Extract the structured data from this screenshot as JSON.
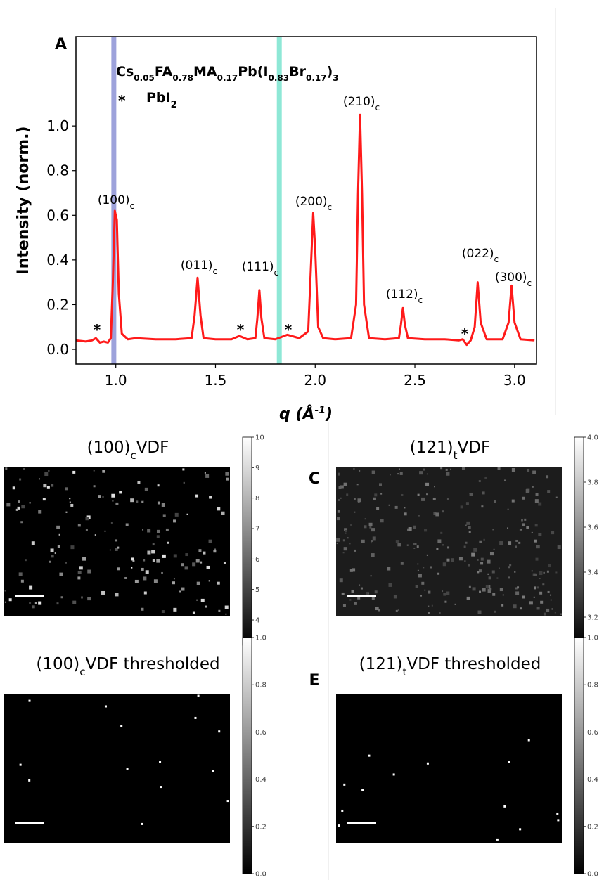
{
  "chart_data": [
    {
      "type": "line",
      "panel_label": "A",
      "ylabel": "Intensity (norm.)",
      "xlabel": [
        "q (Å",
        "-1",
        ")"
      ],
      "xlim": [
        0.8,
        3.11
      ],
      "ylim": [
        -0.066,
        1.4
      ],
      "xticks": [
        {
          "value": 1,
          "label": "1.0"
        },
        1.5,
        {
          "value": 2,
          "label": "2.0"
        },
        2.5,
        {
          "value": 3,
          "label": "3.0"
        }
      ],
      "yticks": [
        {
          "value": 0,
          "label": "0.0"
        },
        0.2,
        0.4,
        0.6,
        0.8,
        {
          "value": 1,
          "label": "1.0"
        }
      ],
      "legend": [
        [
          "Cs",
          "0.05",
          "FA",
          "0.78",
          "MA",
          "0.17",
          "Pb(I",
          "0.83",
          "Br",
          "0.17",
          ")",
          "3"
        ],
        [
          "*",
          "PbI",
          "2"
        ]
      ],
      "bands": [
        {
          "x": 0.99,
          "color": "#9da2db"
        },
        {
          "x": 1.82,
          "color": "#8ee8d6"
        }
      ],
      "series": [
        {
          "color": "#ff1a1a",
          "x": [
            0.8,
            0.85,
            0.88,
            0.9,
            0.92,
            0.94,
            0.96,
            0.975,
            0.985,
            0.995,
            1.005,
            1.015,
            1.03,
            1.06,
            1.1,
            1.2,
            1.3,
            1.38,
            1.395,
            1.41,
            1.425,
            1.44,
            1.5,
            1.58,
            1.62,
            1.66,
            1.7,
            1.71,
            1.72,
            1.73,
            1.745,
            1.8,
            1.86,
            1.92,
            1.965,
            1.98,
            1.99,
            2.0,
            2.015,
            2.04,
            2.1,
            2.18,
            2.205,
            2.215,
            2.225,
            2.235,
            2.245,
            2.27,
            2.35,
            2.42,
            2.43,
            2.44,
            2.45,
            2.465,
            2.55,
            2.65,
            2.72,
            2.74,
            2.76,
            2.78,
            2.8,
            2.815,
            2.83,
            2.86,
            2.94,
            2.97,
            2.985,
            3.0,
            3.03,
            3.1
          ],
          "values": [
            0.04,
            0.035,
            0.04,
            0.05,
            0.03,
            0.035,
            0.03,
            0.05,
            0.3,
            0.62,
            0.58,
            0.25,
            0.07,
            0.045,
            0.05,
            0.045,
            0.045,
            0.05,
            0.15,
            0.32,
            0.15,
            0.05,
            0.045,
            0.045,
            0.06,
            0.045,
            0.05,
            0.14,
            0.265,
            0.14,
            0.05,
            0.045,
            0.065,
            0.05,
            0.08,
            0.4,
            0.61,
            0.45,
            0.1,
            0.05,
            0.045,
            0.05,
            0.2,
            0.7,
            1.05,
            0.7,
            0.2,
            0.05,
            0.045,
            0.05,
            0.11,
            0.185,
            0.11,
            0.05,
            0.045,
            0.045,
            0.04,
            0.045,
            0.02,
            0.04,
            0.1,
            0.3,
            0.12,
            0.045,
            0.045,
            0.12,
            0.285,
            0.12,
            0.045,
            0.04
          ]
        }
      ],
      "peak_labels": [
        {
          "text": "(100)",
          "sub": "c"
        },
        {
          "text": "(011)",
          "sub": "c"
        },
        {
          "text": "(111)",
          "sub": "c"
        },
        {
          "text": "(200)",
          "sub": "c"
        },
        {
          "text": "(210)",
          "sub": "c"
        },
        {
          "text": "(112)",
          "sub": "c"
        },
        {
          "text": "(022)",
          "sub": "c"
        },
        {
          "text": "(300)",
          "sub": "c"
        }
      ],
      "star_labels": [
        "*",
        "*",
        "*",
        "*"
      ]
    },
    {
      "type": "image",
      "title": [
        "(100)",
        "c",
        "VDF"
      ],
      "colorbar_lim": [
        3.17,
        10
      ],
      "colorbar_ticks": [
        4,
        5,
        6,
        7,
        8,
        9,
        10
      ]
    },
    {
      "type": "image",
      "panel_label": "C",
      "title": [
        "(121)",
        "t",
        "VDF"
      ],
      "colorbar_lim": [
        3.075,
        4.0
      ],
      "colorbar_ticks": [
        3.2,
        3.4,
        3.6,
        3.8,
        {
          "value": 4,
          "label": "4.0"
        }
      ]
    },
    {
      "type": "image",
      "title": [
        "(100)",
        "c",
        "VDF thresholded"
      ],
      "colorbar_lim": [
        0,
        1
      ],
      "colorbar_ticks": [
        {
          "value": 0,
          "label": "0.0"
        },
        0.2,
        0.4,
        0.6,
        0.8,
        {
          "value": 1,
          "label": "1.0"
        }
      ]
    },
    {
      "type": "image",
      "panel_label": "E",
      "title": [
        "(121)",
        "t",
        "VDF thresholded"
      ],
      "colorbar_lim": [
        0,
        1
      ],
      "colorbar_ticks": [
        {
          "value": 0,
          "label": "0.0"
        },
        0.2,
        0.4,
        0.6,
        0.8,
        {
          "value": 1,
          "label": "1.0"
        }
      ]
    }
  ]
}
